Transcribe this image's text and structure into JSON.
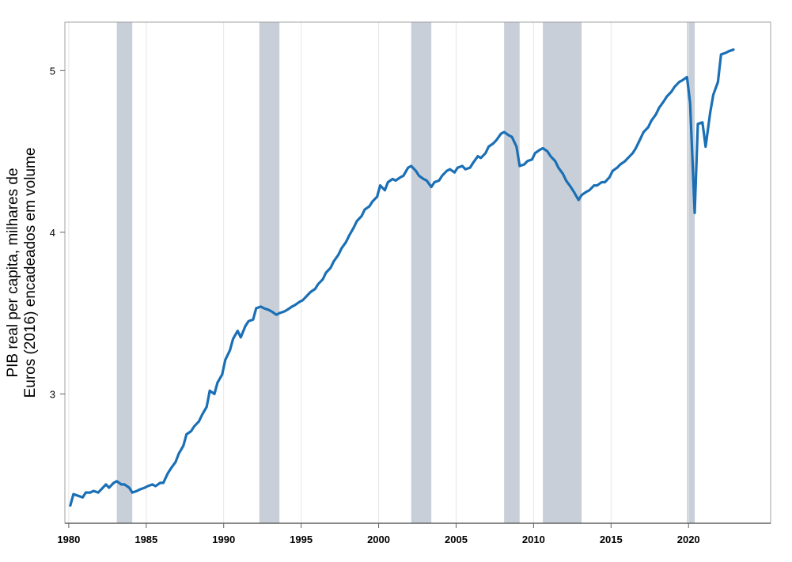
{
  "chart_data": {
    "type": "line",
    "title": "",
    "xlabel": "",
    "ylabel": "PIB real per capita, milhares de Euros (2016) encadeados em volume",
    "ylabel_lines": [
      "PIB real per capita, milhares de",
      "Euros (2016) encadeados em volume"
    ],
    "xlim": [
      1979.75,
      2025.3
    ],
    "ylim": [
      2.2,
      5.3
    ],
    "x_ticks": [
      1980,
      1985,
      1990,
      1995,
      2000,
      2005,
      2010,
      2015,
      2020
    ],
    "x_tick_labels": [
      "1980",
      "1985",
      "1990",
      "1995",
      "2000",
      "2005",
      "2010",
      "2015",
      "2020"
    ],
    "y_ticks": [
      3,
      4,
      5
    ],
    "y_tick_labels": [
      "3",
      "4",
      "5"
    ],
    "grid": "vertical",
    "line_color": "#1a6fb5",
    "recession_color": "#c8cfd8",
    "recessions": [
      {
        "start": 1983.1,
        "end": 1984.1
      },
      {
        "start": 1992.3,
        "end": 1993.6
      },
      {
        "start": 2002.1,
        "end": 2003.4
      },
      {
        "start": 2008.1,
        "end": 2009.1
      },
      {
        "start": 2010.6,
        "end": 2013.1
      },
      {
        "start": 2019.9,
        "end": 2020.4
      }
    ],
    "series": [
      {
        "values": [
          [
            1980.1,
            2.31
          ],
          [
            1980.3,
            2.38
          ],
          [
            1980.6,
            2.37
          ],
          [
            1980.9,
            2.36
          ],
          [
            1981.1,
            2.39
          ],
          [
            1981.4,
            2.39
          ],
          [
            1981.6,
            2.4
          ],
          [
            1981.9,
            2.39
          ],
          [
            1982.1,
            2.41
          ],
          [
            1982.4,
            2.44
          ],
          [
            1982.6,
            2.42
          ],
          [
            1982.9,
            2.45
          ],
          [
            1983.1,
            2.46
          ],
          [
            1983.4,
            2.44
          ],
          [
            1983.6,
            2.44
          ],
          [
            1983.9,
            2.42
          ],
          [
            1984.1,
            2.39
          ],
          [
            1984.4,
            2.4
          ],
          [
            1984.6,
            2.41
          ],
          [
            1984.9,
            2.42
          ],
          [
            1985.1,
            2.43
          ],
          [
            1985.4,
            2.44
          ],
          [
            1985.6,
            2.43
          ],
          [
            1985.9,
            2.45
          ],
          [
            1986.1,
            2.45
          ],
          [
            1986.4,
            2.51
          ],
          [
            1986.6,
            2.54
          ],
          [
            1986.9,
            2.58
          ],
          [
            1987.1,
            2.63
          ],
          [
            1987.4,
            2.68
          ],
          [
            1987.6,
            2.75
          ],
          [
            1987.9,
            2.77
          ],
          [
            1988.1,
            2.8
          ],
          [
            1988.4,
            2.83
          ],
          [
            1988.6,
            2.87
          ],
          [
            1988.9,
            2.92
          ],
          [
            1989.1,
            3.02
          ],
          [
            1989.4,
            3.0
          ],
          [
            1989.6,
            3.07
          ],
          [
            1989.9,
            3.12
          ],
          [
            1990.1,
            3.21
          ],
          [
            1990.4,
            3.27
          ],
          [
            1990.6,
            3.34
          ],
          [
            1990.9,
            3.39
          ],
          [
            1991.1,
            3.35
          ],
          [
            1991.4,
            3.42
          ],
          [
            1991.6,
            3.45
          ],
          [
            1991.9,
            3.46
          ],
          [
            1992.1,
            3.53
          ],
          [
            1992.4,
            3.54
          ],
          [
            1992.6,
            3.53
          ],
          [
            1992.9,
            3.52
          ],
          [
            1993.1,
            3.51
          ],
          [
            1993.4,
            3.49
          ],
          [
            1993.6,
            3.5
          ],
          [
            1993.9,
            3.51
          ],
          [
            1994.1,
            3.52
          ],
          [
            1994.4,
            3.54
          ],
          [
            1994.6,
            3.55
          ],
          [
            1994.9,
            3.57
          ],
          [
            1995.1,
            3.58
          ],
          [
            1995.4,
            3.61
          ],
          [
            1995.6,
            3.63
          ],
          [
            1995.9,
            3.65
          ],
          [
            1996.1,
            3.68
          ],
          [
            1996.4,
            3.71
          ],
          [
            1996.6,
            3.75
          ],
          [
            1996.9,
            3.78
          ],
          [
            1997.1,
            3.82
          ],
          [
            1997.4,
            3.86
          ],
          [
            1997.6,
            3.9
          ],
          [
            1997.9,
            3.94
          ],
          [
            1998.1,
            3.98
          ],
          [
            1998.4,
            4.03
          ],
          [
            1998.6,
            4.07
          ],
          [
            1998.9,
            4.1
          ],
          [
            1999.1,
            4.14
          ],
          [
            1999.4,
            4.16
          ],
          [
            1999.6,
            4.19
          ],
          [
            1999.9,
            4.22
          ],
          [
            2000.1,
            4.29
          ],
          [
            2000.4,
            4.26
          ],
          [
            2000.6,
            4.31
          ],
          [
            2000.9,
            4.33
          ],
          [
            2001.1,
            4.32
          ],
          [
            2001.4,
            4.34
          ],
          [
            2001.6,
            4.35
          ],
          [
            2001.9,
            4.4
          ],
          [
            2002.1,
            4.41
          ],
          [
            2002.4,
            4.38
          ],
          [
            2002.6,
            4.35
          ],
          [
            2002.9,
            4.33
          ],
          [
            2003.1,
            4.32
          ],
          [
            2003.4,
            4.28
          ],
          [
            2003.6,
            4.31
          ],
          [
            2003.9,
            4.32
          ],
          [
            2004.1,
            4.35
          ],
          [
            2004.4,
            4.38
          ],
          [
            2004.6,
            4.39
          ],
          [
            2004.9,
            4.37
          ],
          [
            2005.1,
            4.4
          ],
          [
            2005.4,
            4.41
          ],
          [
            2005.6,
            4.39
          ],
          [
            2005.9,
            4.4
          ],
          [
            2006.1,
            4.43
          ],
          [
            2006.4,
            4.47
          ],
          [
            2006.6,
            4.46
          ],
          [
            2006.9,
            4.49
          ],
          [
            2007.1,
            4.53
          ],
          [
            2007.4,
            4.55
          ],
          [
            2007.6,
            4.57
          ],
          [
            2007.9,
            4.61
          ],
          [
            2008.1,
            4.62
          ],
          [
            2008.4,
            4.6
          ],
          [
            2008.6,
            4.59
          ],
          [
            2008.9,
            4.53
          ],
          [
            2009.1,
            4.41
          ],
          [
            2009.4,
            4.42
          ],
          [
            2009.6,
            4.44
          ],
          [
            2009.9,
            4.45
          ],
          [
            2010.1,
            4.49
          ],
          [
            2010.4,
            4.51
          ],
          [
            2010.6,
            4.52
          ],
          [
            2010.9,
            4.5
          ],
          [
            2011.1,
            4.47
          ],
          [
            2011.4,
            4.44
          ],
          [
            2011.6,
            4.4
          ],
          [
            2011.9,
            4.36
          ],
          [
            2012.1,
            4.32
          ],
          [
            2012.4,
            4.28
          ],
          [
            2012.6,
            4.25
          ],
          [
            2012.9,
            4.2
          ],
          [
            2013.1,
            4.23
          ],
          [
            2013.4,
            4.25
          ],
          [
            2013.6,
            4.26
          ],
          [
            2013.9,
            4.29
          ],
          [
            2014.1,
            4.29
          ],
          [
            2014.4,
            4.31
          ],
          [
            2014.6,
            4.31
          ],
          [
            2014.9,
            4.34
          ],
          [
            2015.1,
            4.38
          ],
          [
            2015.4,
            4.4
          ],
          [
            2015.6,
            4.42
          ],
          [
            2015.9,
            4.44
          ],
          [
            2016.1,
            4.46
          ],
          [
            2016.4,
            4.49
          ],
          [
            2016.6,
            4.52
          ],
          [
            2016.9,
            4.58
          ],
          [
            2017.1,
            4.62
          ],
          [
            2017.4,
            4.65
          ],
          [
            2017.6,
            4.69
          ],
          [
            2017.9,
            4.73
          ],
          [
            2018.1,
            4.77
          ],
          [
            2018.4,
            4.81
          ],
          [
            2018.6,
            4.84
          ],
          [
            2018.9,
            4.87
          ],
          [
            2019.1,
            4.9
          ],
          [
            2019.4,
            4.93
          ],
          [
            2019.6,
            4.94
          ],
          [
            2019.9,
            4.96
          ],
          [
            2020.1,
            4.8
          ],
          [
            2020.4,
            4.12
          ],
          [
            2020.6,
            4.67
          ],
          [
            2020.9,
            4.68
          ],
          [
            2021.1,
            4.53
          ],
          [
            2021.4,
            4.74
          ],
          [
            2021.6,
            4.85
          ],
          [
            2021.9,
            4.93
          ],
          [
            2022.1,
            5.1
          ],
          [
            2022.4,
            5.11
          ],
          [
            2022.6,
            5.12
          ],
          [
            2022.9,
            5.13
          ]
        ]
      }
    ]
  }
}
